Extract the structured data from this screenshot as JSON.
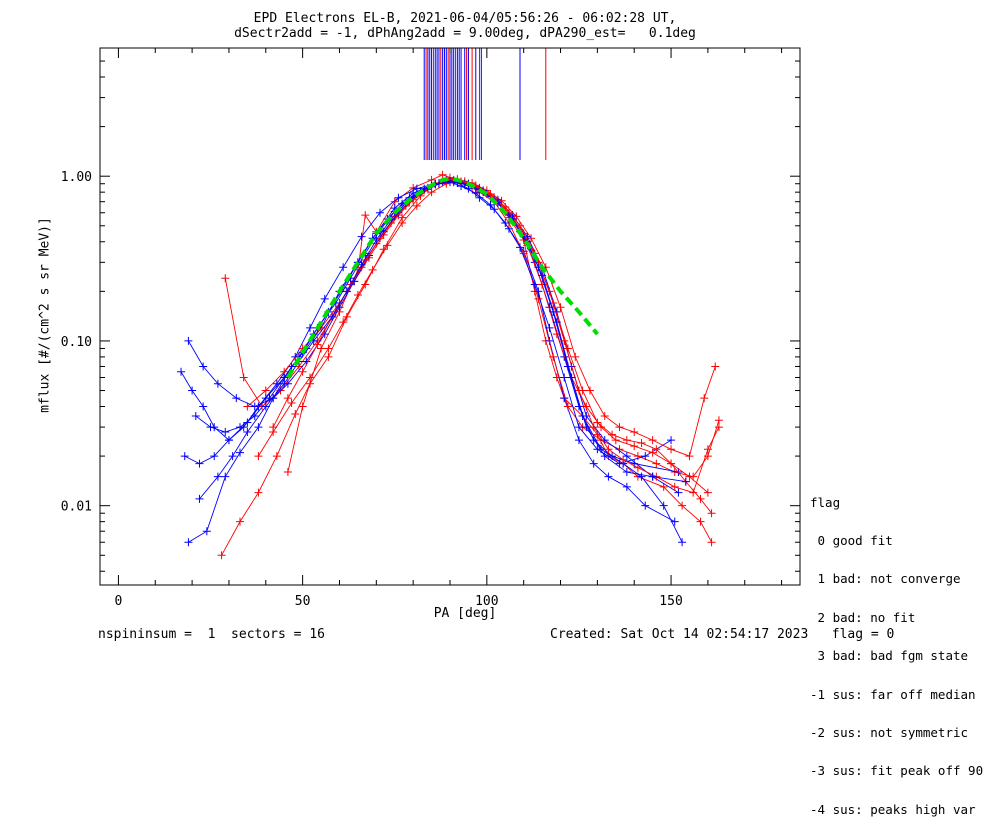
{
  "header": {
    "title_line1": "EPD Electrons EL-B, 2021-06-04/05:56:26 - 06:02:28 UT,",
    "title_line2": "dSectr2add = -1, dPhAng2add = 9.00deg, dPA290_est=   0.1deg"
  },
  "footer": {
    "left": "nspininsum =  1  sectors = 16",
    "right": "Created: Sat Oct 14 02:54:17 2023   flag = 0"
  },
  "legend": {
    "title": "flag",
    "items": [
      " 0 good fit",
      " 1 bad: not converge",
      " 2 bad: no fit",
      " 3 bad: bad fgm state",
      "-1 sus: far off median",
      "-2 sus: not symmetric",
      "-3 sus: fit peak off 90",
      "-4 sus: peaks high var"
    ]
  },
  "colors": {
    "series_a": "#ff0000",
    "series_b": "#0000ff",
    "fit": "#00dd00",
    "axes": "#000000"
  },
  "chart_data": {
    "type": "line",
    "xlabel": "PA [deg]",
    "ylabel": "mflux [#/(cm^2 s sr MeV)]",
    "xlim": [
      -5,
      185
    ],
    "ylim": [
      0.0033,
      6.0
    ],
    "yscale": "log",
    "x_ticks": [
      0,
      50,
      100,
      150
    ],
    "x_tick_labels": [
      "0",
      "50",
      "100",
      "150"
    ],
    "y_ticks": [
      0.01,
      0.1,
      1.0
    ],
    "y_tick_labels": [
      "0.01",
      "0.10",
      "1.00"
    ],
    "grid": false,
    "legend_position": "lower-right outside",
    "peak_marker_x": {
      "red": [
        83.5,
        85.5,
        87.5,
        89.5,
        91.5,
        94.5,
        96,
        98,
        116
      ],
      "blue": [
        83,
        84,
        84.5,
        85,
        86,
        86.5,
        87,
        88,
        88.5,
        89,
        90,
        90.5,
        91,
        92,
        92.5,
        93,
        94,
        95,
        97,
        98.5,
        109
      ]
    },
    "fit_curve": {
      "x": [
        46,
        50,
        55,
        60,
        65,
        70,
        75,
        80,
        85,
        88,
        90,
        92,
        95,
        100,
        105,
        110,
        115,
        120,
        125,
        130
      ],
      "y": [
        0.06,
        0.085,
        0.13,
        0.2,
        0.3,
        0.45,
        0.6,
        0.75,
        0.88,
        0.95,
        0.97,
        0.95,
        0.9,
        0.78,
        0.6,
        0.42,
        0.28,
        0.2,
        0.15,
        0.11
      ]
    },
    "series": [
      {
        "color": "red",
        "x": [
          46,
          50,
          55,
          60,
          65,
          67,
          70,
          75,
          80,
          85,
          88,
          90,
          93,
          96,
          100,
          103,
          106,
          110,
          113,
          116,
          119,
          121,
          126,
          130,
          133,
          137,
          141,
          148,
          153,
          158,
          161
        ],
        "y": [
          0.016,
          0.04,
          0.09,
          0.15,
          0.27,
          0.58,
          0.46,
          0.7,
          0.85,
          0.95,
          1.02,
          0.98,
          0.92,
          0.86,
          0.78,
          0.7,
          0.56,
          0.41,
          0.2,
          0.1,
          0.06,
          0.045,
          0.035,
          0.027,
          0.02,
          0.018,
          0.015,
          0.013,
          0.01,
          0.008,
          0.006
        ]
      },
      {
        "color": "blue",
        "x": [
          19,
          24,
          29,
          33,
          38,
          42,
          47,
          51,
          55,
          60,
          65,
          70,
          75,
          80,
          85,
          89,
          92,
          95,
          98,
          102,
          106,
          110,
          114,
          117,
          121,
          125,
          129,
          133,
          138,
          143,
          151
        ],
        "y": [
          0.006,
          0.007,
          0.015,
          0.021,
          0.03,
          0.045,
          0.07,
          0.09,
          0.12,
          0.2,
          0.3,
          0.45,
          0.64,
          0.79,
          0.88,
          0.94,
          0.91,
          0.84,
          0.74,
          0.63,
          0.48,
          0.35,
          0.2,
          0.1,
          0.045,
          0.025,
          0.018,
          0.015,
          0.013,
          0.01,
          0.008
        ]
      },
      {
        "color": "red",
        "x": [
          28,
          33,
          38,
          43,
          48,
          52,
          57,
          62,
          67,
          72,
          77,
          82,
          86,
          90,
          94,
          98,
          102,
          106,
          110,
          114,
          118,
          122,
          126,
          131,
          136,
          141,
          146,
          151,
          156,
          160,
          163
        ],
        "y": [
          0.005,
          0.008,
          0.012,
          0.02,
          0.036,
          0.055,
          0.08,
          0.14,
          0.22,
          0.36,
          0.56,
          0.76,
          0.9,
          0.97,
          0.9,
          0.8,
          0.7,
          0.52,
          0.34,
          0.18,
          0.08,
          0.04,
          0.03,
          0.025,
          0.022,
          0.02,
          0.018,
          0.016,
          0.015,
          0.02,
          0.033
        ]
      },
      {
        "color": "blue",
        "x": [
          17,
          20,
          23,
          26,
          30,
          34,
          38,
          43,
          48,
          52,
          56,
          61,
          66,
          71,
          76,
          81,
          86,
          90,
          93,
          97,
          101,
          105,
          109,
          113,
          117,
          121,
          125,
          130,
          136,
          143,
          150
        ],
        "y": [
          0.065,
          0.05,
          0.04,
          0.03,
          0.025,
          0.03,
          0.04,
          0.055,
          0.08,
          0.12,
          0.18,
          0.28,
          0.43,
          0.6,
          0.74,
          0.84,
          0.9,
          0.92,
          0.87,
          0.79,
          0.67,
          0.52,
          0.37,
          0.22,
          0.12,
          0.06,
          0.03,
          0.022,
          0.018,
          0.02,
          0.025
        ]
      },
      {
        "color": "red",
        "x": [
          35,
          40,
          45,
          50,
          55,
          60,
          64,
          68,
          72,
          76,
          80,
          84,
          88,
          92,
          96,
          100,
          104,
          108,
          112,
          116,
          120,
          124,
          128,
          132,
          136,
          140,
          145,
          150,
          155,
          159,
          162
        ],
        "y": [
          0.04,
          0.05,
          0.065,
          0.09,
          0.12,
          0.17,
          0.23,
          0.32,
          0.44,
          0.58,
          0.72,
          0.83,
          0.92,
          0.96,
          0.91,
          0.82,
          0.71,
          0.57,
          0.42,
          0.28,
          0.16,
          0.08,
          0.05,
          0.035,
          0.03,
          0.028,
          0.025,
          0.022,
          0.02,
          0.045,
          0.07
        ]
      },
      {
        "color": "blue",
        "x": [
          21,
          25,
          29,
          33,
          37,
          41,
          45,
          49,
          53,
          57,
          61,
          65,
          69,
          73,
          77,
          81,
          85,
          89,
          93,
          97,
          101,
          105,
          109,
          113,
          117,
          121,
          125,
          129,
          134,
          140,
          152
        ],
        "y": [
          0.035,
          0.03,
          0.028,
          0.03,
          0.035,
          0.045,
          0.06,
          0.08,
          0.11,
          0.15,
          0.21,
          0.3,
          0.42,
          0.55,
          0.68,
          0.79,
          0.87,
          0.93,
          0.91,
          0.85,
          0.75,
          0.62,
          0.46,
          0.3,
          0.16,
          0.08,
          0.04,
          0.025,
          0.02,
          0.018,
          0.016
        ]
      },
      {
        "color": "red",
        "x": [
          29,
          34,
          39,
          44,
          49,
          54,
          59,
          63,
          67,
          71,
          75,
          79,
          83,
          87,
          91,
          95,
          99,
          103,
          107,
          111,
          115,
          119,
          123,
          127,
          131,
          135,
          140,
          145,
          150,
          155,
          160
        ],
        "y": [
          0.24,
          0.06,
          0.04,
          0.05,
          0.07,
          0.1,
          0.15,
          0.22,
          0.31,
          0.42,
          0.57,
          0.7,
          0.82,
          0.91,
          0.95,
          0.9,
          0.81,
          0.7,
          0.55,
          0.38,
          0.22,
          0.11,
          0.06,
          0.04,
          0.03,
          0.025,
          0.023,
          0.021,
          0.018,
          0.015,
          0.012
        ]
      },
      {
        "color": "blue",
        "x": [
          19,
          23,
          27,
          32,
          37,
          42,
          46,
          51,
          56,
          60,
          64,
          68,
          72,
          76,
          80,
          84,
          88,
          91,
          95,
          99,
          103,
          107,
          111,
          115,
          119,
          123,
          127,
          132,
          138,
          145,
          152
        ],
        "y": [
          0.1,
          0.07,
          0.055,
          0.045,
          0.04,
          0.045,
          0.055,
          0.075,
          0.11,
          0.16,
          0.23,
          0.33,
          0.46,
          0.6,
          0.74,
          0.85,
          0.92,
          0.94,
          0.9,
          0.82,
          0.72,
          0.58,
          0.43,
          0.28,
          0.15,
          0.07,
          0.035,
          0.025,
          0.02,
          0.015,
          0.012
        ]
      },
      {
        "color": "red",
        "x": [
          42,
          46,
          50,
          54,
          58,
          62,
          66,
          70,
          74,
          78,
          82,
          86,
          90,
          94,
          98,
          102,
          106,
          110,
          114,
          118,
          122,
          126,
          130,
          134,
          138,
          142,
          146,
          150,
          154,
          158,
          161
        ],
        "y": [
          0.03,
          0.045,
          0.065,
          0.095,
          0.14,
          0.2,
          0.28,
          0.39,
          0.52,
          0.66,
          0.79,
          0.89,
          0.95,
          0.93,
          0.85,
          0.74,
          0.6,
          0.45,
          0.3,
          0.17,
          0.09,
          0.05,
          0.032,
          0.027,
          0.025,
          0.024,
          0.022,
          0.018,
          0.014,
          0.011,
          0.009
        ]
      },
      {
        "color": "blue",
        "x": [
          22,
          27,
          31,
          35,
          40,
          45,
          49,
          53,
          58,
          62,
          66,
          70,
          74,
          78,
          82,
          86,
          90,
          94,
          98,
          102,
          106,
          110,
          114,
          118,
          122,
          126,
          131,
          137,
          142,
          148,
          153
        ],
        "y": [
          0.011,
          0.015,
          0.02,
          0.028,
          0.04,
          0.055,
          0.075,
          0.1,
          0.14,
          0.2,
          0.29,
          0.41,
          0.55,
          0.69,
          0.81,
          0.89,
          0.93,
          0.9,
          0.83,
          0.72,
          0.58,
          0.43,
          0.28,
          0.15,
          0.07,
          0.035,
          0.022,
          0.018,
          0.015,
          0.01,
          0.006
        ]
      },
      {
        "color": "red",
        "x": [
          38,
          42,
          47,
          52,
          57,
          61,
          65,
          69,
          73,
          77,
          81,
          85,
          89,
          93,
          97,
          101,
          105,
          109,
          113,
          117,
          121,
          125,
          129,
          133,
          137,
          141,
          146,
          151,
          156,
          160,
          163
        ],
        "y": [
          0.02,
          0.028,
          0.042,
          0.06,
          0.09,
          0.13,
          0.19,
          0.27,
          0.38,
          0.52,
          0.66,
          0.8,
          0.9,
          0.93,
          0.88,
          0.78,
          0.65,
          0.5,
          0.34,
          0.2,
          0.1,
          0.05,
          0.03,
          0.022,
          0.019,
          0.017,
          0.015,
          0.013,
          0.012,
          0.022,
          0.03
        ]
      },
      {
        "color": "blue",
        "x": [
          18,
          22,
          26,
          30,
          35,
          40,
          45,
          50,
          54,
          59,
          63,
          67,
          71,
          75,
          79,
          83,
          87,
          91,
          95,
          99,
          103,
          107,
          111,
          115,
          119,
          123,
          127,
          132,
          138,
          145,
          154
        ],
        "y": [
          0.02,
          0.018,
          0.02,
          0.025,
          0.032,
          0.045,
          0.06,
          0.085,
          0.12,
          0.17,
          0.24,
          0.34,
          0.47,
          0.61,
          0.74,
          0.84,
          0.9,
          0.92,
          0.88,
          0.8,
          0.69,
          0.55,
          0.4,
          0.25,
          0.13,
          0.06,
          0.03,
          0.02,
          0.016,
          0.015,
          0.014
        ]
      }
    ]
  }
}
